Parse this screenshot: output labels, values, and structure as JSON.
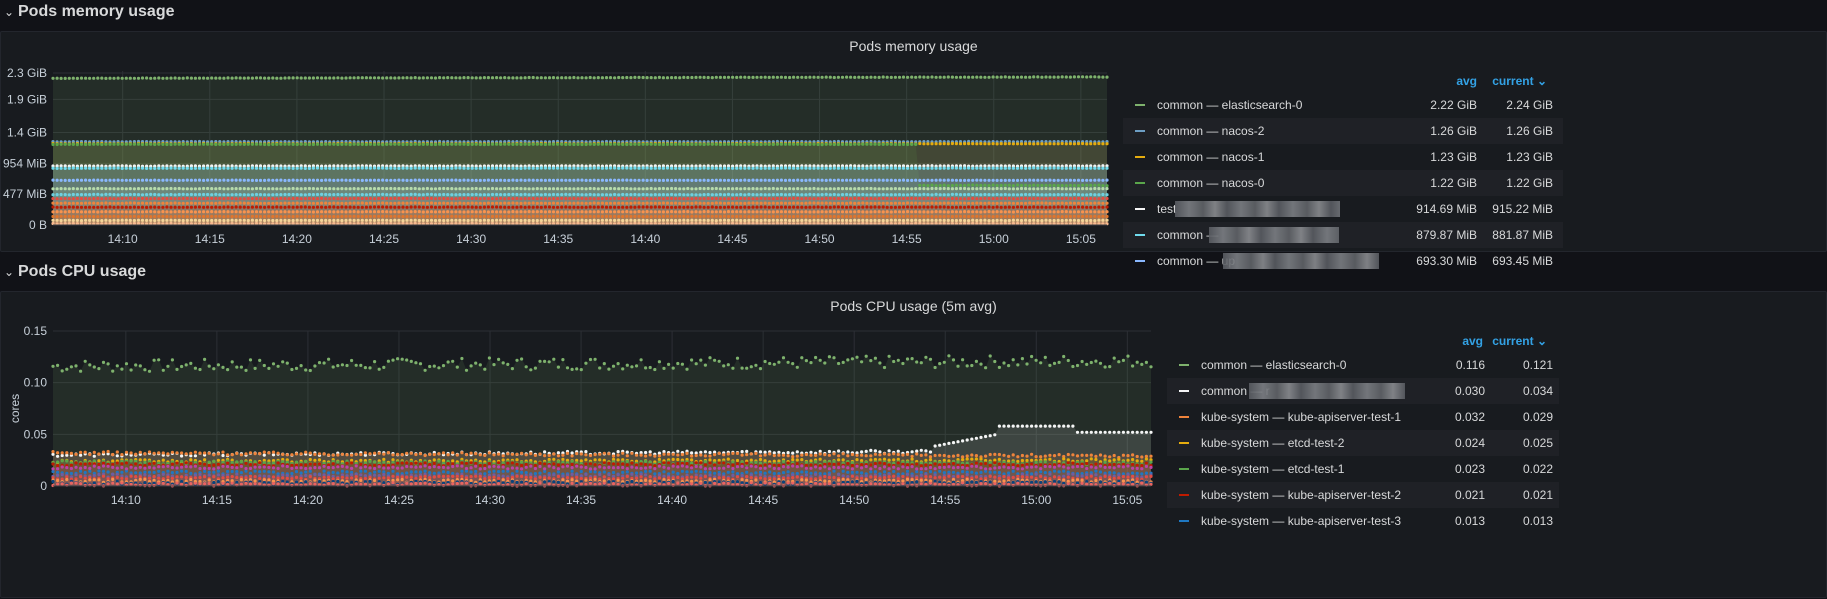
{
  "rows": {
    "memory_row_title": "Pods memory usage",
    "cpu_row_title": "Pods CPU usage"
  },
  "memory_panel": {
    "title": "Pods memory usage",
    "legend_headers": {
      "avg": "avg",
      "current": "current"
    },
    "legend": [
      {
        "name": "common — elasticsearch-0",
        "avg": "2.22 GiB",
        "current": "2.24 GiB",
        "color": "#7eb26d"
      },
      {
        "name": "common — nacos-2",
        "avg": "1.26 GiB",
        "current": "1.26 GiB",
        "color": "#6d9ec4"
      },
      {
        "name": "common — nacos-1",
        "avg": "1.23 GiB",
        "current": "1.23 GiB",
        "color": "#e5ac0e"
      },
      {
        "name": "common — nacos-0",
        "avg": "1.22 GiB",
        "current": "1.22 GiB",
        "color": "#5aa64b"
      },
      {
        "name": "test",
        "avg": "914.69 MiB",
        "current": "915.22 MiB",
        "color": "#f4f5f5"
      },
      {
        "name": "common —",
        "avg": "879.87 MiB",
        "current": "881.87 MiB",
        "color": "#70dbed"
      },
      {
        "name": "common — up",
        "avg": "693.30 MiB",
        "current": "693.45 MiB",
        "color": "#8ab8ff"
      }
    ],
    "chart_data": {
      "type": "scatter",
      "title": "Pods memory usage",
      "x_ticks": [
        "14:10",
        "14:15",
        "14:20",
        "14:25",
        "14:30",
        "14:35",
        "14:40",
        "14:45",
        "14:50",
        "14:55",
        "15:00",
        "15:05"
      ],
      "y_ticks": [
        "0 B",
        "477 MiB",
        "954 MiB",
        "1.4 GiB",
        "1.9 GiB",
        "2.3 GiB"
      ],
      "ylim_gib": [
        0,
        2.33
      ],
      "series": [
        {
          "name": "common — elasticsearch-0",
          "avg": 2.22,
          "current": 2.24,
          "color": "#7eb26d"
        },
        {
          "name": "common — nacos-2",
          "avg": 1.26,
          "current": 1.26,
          "color": "#6d9ec4"
        },
        {
          "name": "common — nacos-1",
          "avg": 1.23,
          "current": 1.23,
          "color": "#e5ac0e"
        },
        {
          "name": "common — nacos-0",
          "avg": 1.22,
          "current": 1.22,
          "color": "#5aa64b"
        },
        {
          "name": "test",
          "avg": 0.893,
          "current": 0.894,
          "color": "#f4f5f5"
        },
        {
          "name": "common —",
          "avg": 0.859,
          "current": 0.861,
          "color": "#70dbed"
        },
        {
          "name": "common — up",
          "avg": 0.677,
          "current": 0.677,
          "color": "#8ab8ff"
        }
      ]
    }
  },
  "cpu_panel": {
    "title": "Pods CPU usage (5m avg)",
    "legend_headers": {
      "avg": "avg",
      "current": "current"
    },
    "legend": [
      {
        "name": "common — elasticsearch-0",
        "avg": "0.116",
        "current": "0.121",
        "color": "#7eb26d"
      },
      {
        "name": "common — r",
        "avg": "0.030",
        "current": "0.034",
        "color": "#f4f5f5"
      },
      {
        "name": "kube-system — kube-apiserver-test-1",
        "avg": "0.032",
        "current": "0.029",
        "color": "#ef843c"
      },
      {
        "name": "kube-system — etcd-test-2",
        "avg": "0.024",
        "current": "0.025",
        "color": "#e5ac0e"
      },
      {
        "name": "kube-system — etcd-test-1",
        "avg": "0.023",
        "current": "0.022",
        "color": "#5aa64b"
      },
      {
        "name": "kube-system — kube-apiserver-test-2",
        "avg": "0.021",
        "current": "0.021",
        "color": "#bf1b00"
      },
      {
        "name": "kube-system — kube-apiserver-test-3",
        "avg": "0.013",
        "current": "0.013",
        "color": "#1f78c1"
      }
    ],
    "chart_data": {
      "type": "scatter",
      "title": "Pods CPU usage (5m avg)",
      "ylabel": "cores",
      "x_ticks": [
        "14:10",
        "14:15",
        "14:20",
        "14:25",
        "14:30",
        "14:35",
        "14:40",
        "14:45",
        "14:50",
        "14:55",
        "15:00",
        "15:05"
      ],
      "y_ticks": [
        "0",
        "0.05",
        "0.10",
        "0.15"
      ],
      "ylim": [
        0,
        0.15
      ],
      "series": [
        {
          "name": "common — elasticsearch-0",
          "avg": 0.116,
          "current": 0.121,
          "color": "#7eb26d"
        },
        {
          "name": "common — r",
          "avg": 0.03,
          "current": 0.034,
          "color": "#f4f5f5"
        },
        {
          "name": "kube-system — kube-apiserver-test-1",
          "avg": 0.032,
          "current": 0.029,
          "color": "#ef843c"
        },
        {
          "name": "kube-system — etcd-test-2",
          "avg": 0.024,
          "current": 0.025,
          "color": "#e5ac0e"
        },
        {
          "name": "kube-system — etcd-test-1",
          "avg": 0.023,
          "current": 0.022,
          "color": "#5aa64b"
        },
        {
          "name": "kube-system — kube-apiserver-test-2",
          "avg": 0.021,
          "current": 0.021,
          "color": "#bf1b00"
        },
        {
          "name": "kube-system — kube-apiserver-test-3",
          "avg": 0.013,
          "current": 0.013,
          "color": "#1f78c1"
        }
      ]
    }
  }
}
